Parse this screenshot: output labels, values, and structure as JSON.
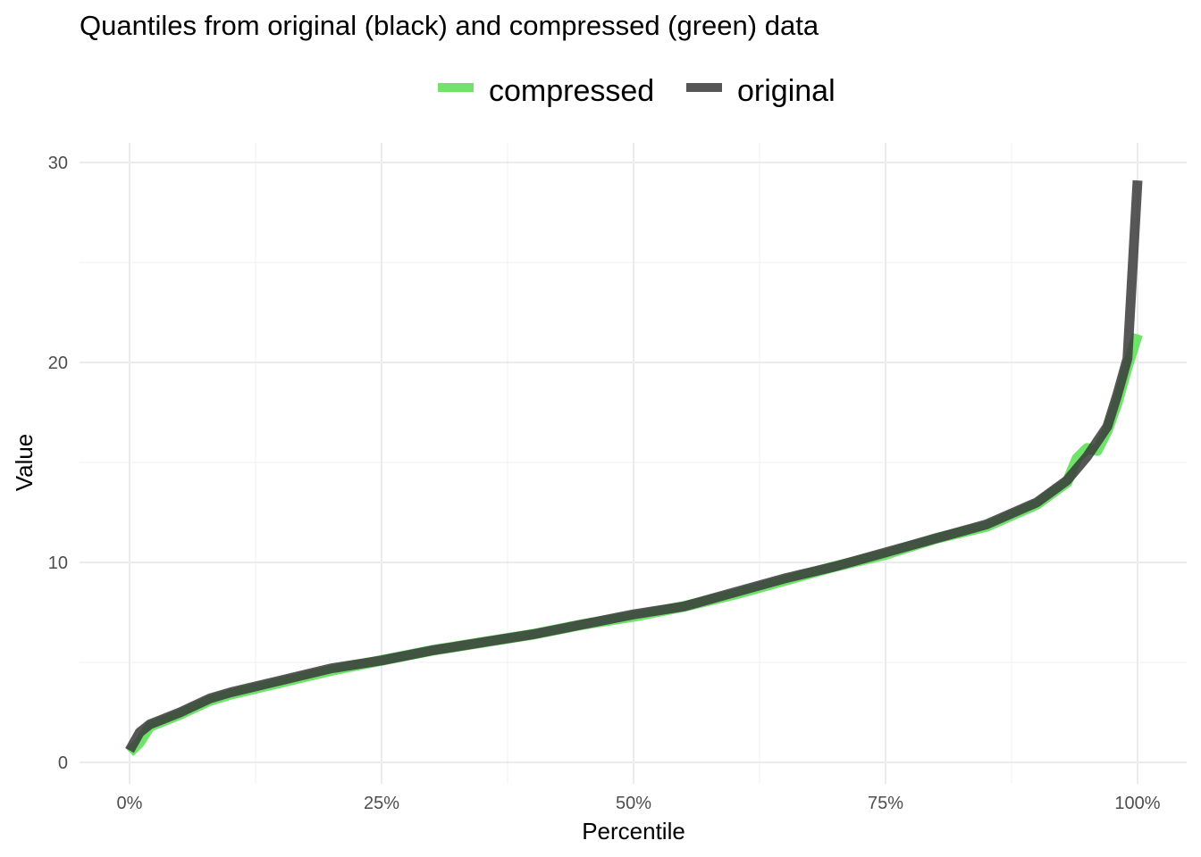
{
  "chart_data": {
    "type": "line",
    "title": "Quantiles from original (black) and compressed (green) data",
    "xlabel": "Percentile",
    "ylabel": "Value",
    "xlim": [
      0,
      1
    ],
    "ylim": [
      0,
      30
    ],
    "x_ticks": [
      {
        "value": 0,
        "label": "0%"
      },
      {
        "value": 0.25,
        "label": "25%"
      },
      {
        "value": 0.5,
        "label": "50%"
      },
      {
        "value": 0.75,
        "label": "75%"
      },
      {
        "value": 1,
        "label": "100%"
      }
    ],
    "y_ticks": [
      {
        "value": 0,
        "label": "0"
      },
      {
        "value": 10,
        "label": "10"
      },
      {
        "value": 20,
        "label": "20"
      },
      {
        "value": 30,
        "label": "30"
      }
    ],
    "grid": true,
    "legend_position": "top",
    "series": [
      {
        "name": "compressed",
        "color": "#5fe05a",
        "x": [
          0,
          0.01,
          0.02,
          0.03,
          0.05,
          0.08,
          0.1,
          0.15,
          0.2,
          0.25,
          0.3,
          0.35,
          0.4,
          0.45,
          0.5,
          0.55,
          0.6,
          0.65,
          0.7,
          0.75,
          0.8,
          0.85,
          0.9,
          0.93,
          0.94,
          0.95,
          0.96,
          0.97,
          0.98,
          0.99,
          1.0
        ],
        "y": [
          0.5,
          1.0,
          1.8,
          2.0,
          2.4,
          3.1,
          3.4,
          4.0,
          4.6,
          5.1,
          5.6,
          6.0,
          6.4,
          6.9,
          7.3,
          7.8,
          8.4,
          9.1,
          9.8,
          10.4,
          11.2,
          11.8,
          12.9,
          14.0,
          15.2,
          15.7,
          15.6,
          16.6,
          18.0,
          19.8,
          21.4
        ]
      },
      {
        "name": "original",
        "color": "#3a3a3a",
        "x": [
          0,
          0.01,
          0.02,
          0.03,
          0.05,
          0.08,
          0.1,
          0.15,
          0.2,
          0.25,
          0.3,
          0.35,
          0.4,
          0.45,
          0.5,
          0.55,
          0.6,
          0.65,
          0.7,
          0.75,
          0.8,
          0.85,
          0.9,
          0.93,
          0.95,
          0.97,
          0.98,
          0.99,
          1.0
        ],
        "y": [
          0.6,
          1.5,
          1.9,
          2.1,
          2.5,
          3.2,
          3.5,
          4.1,
          4.7,
          5.1,
          5.6,
          6.0,
          6.4,
          6.9,
          7.4,
          7.8,
          8.5,
          9.2,
          9.8,
          10.5,
          11.2,
          11.9,
          13.0,
          14.1,
          15.3,
          16.8,
          18.4,
          20.2,
          29.1
        ]
      }
    ]
  }
}
